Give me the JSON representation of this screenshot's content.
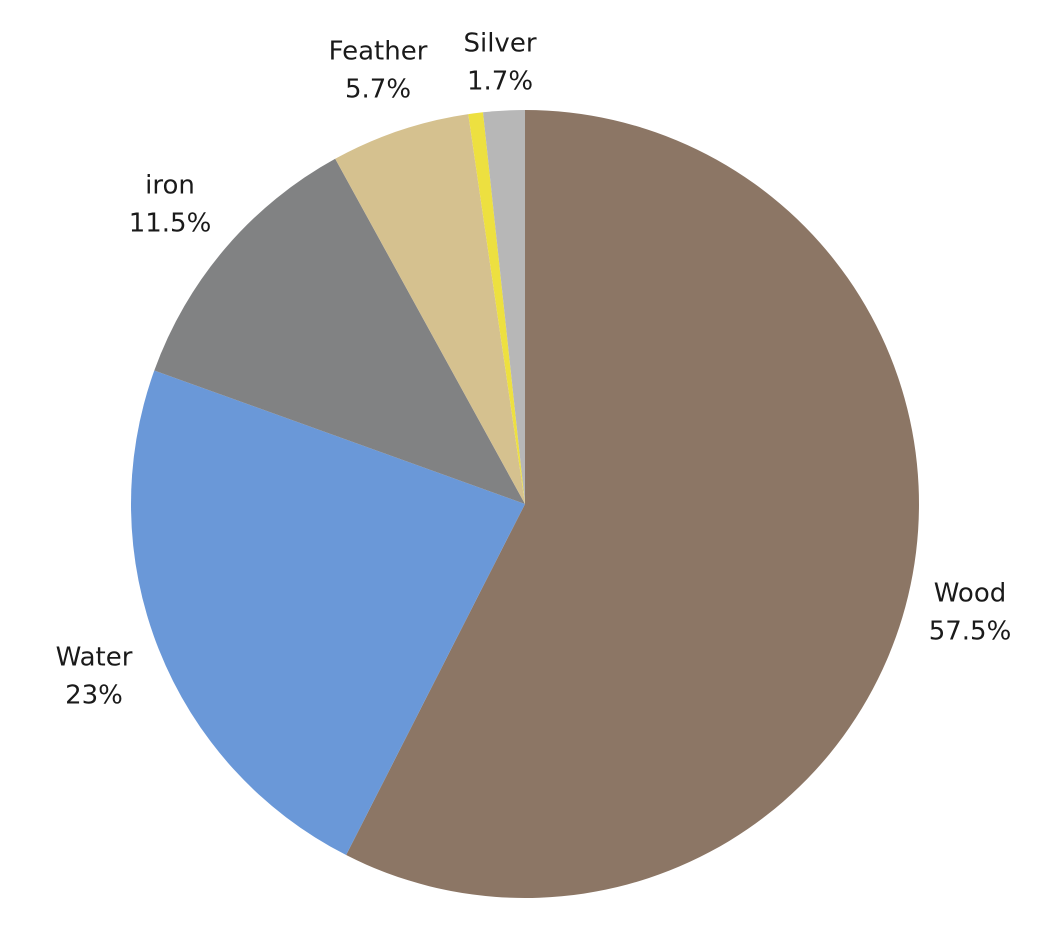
{
  "chart_data": {
    "type": "pie",
    "title": "",
    "slices": [
      {
        "name": "Wood",
        "value": 57.5,
        "label": "57.5%",
        "color": "#8c7665"
      },
      {
        "name": "Water",
        "value": 23,
        "label": "23%",
        "color": "#6a98d8"
      },
      {
        "name": "iron",
        "value": 11.5,
        "label": "11.5%",
        "color": "#818283"
      },
      {
        "name": "Feather",
        "value": 5.7,
        "label": "5.7%",
        "color": "#d5c18f"
      },
      {
        "name": "",
        "value": 0.6,
        "label": "",
        "color": "#ede040"
      },
      {
        "name": "Silver",
        "value": 1.7,
        "label": "1.7%",
        "color": "#b7b7b7"
      }
    ],
    "start_angle": "12 o'clock",
    "direction": "clockwise",
    "legend": "none"
  }
}
